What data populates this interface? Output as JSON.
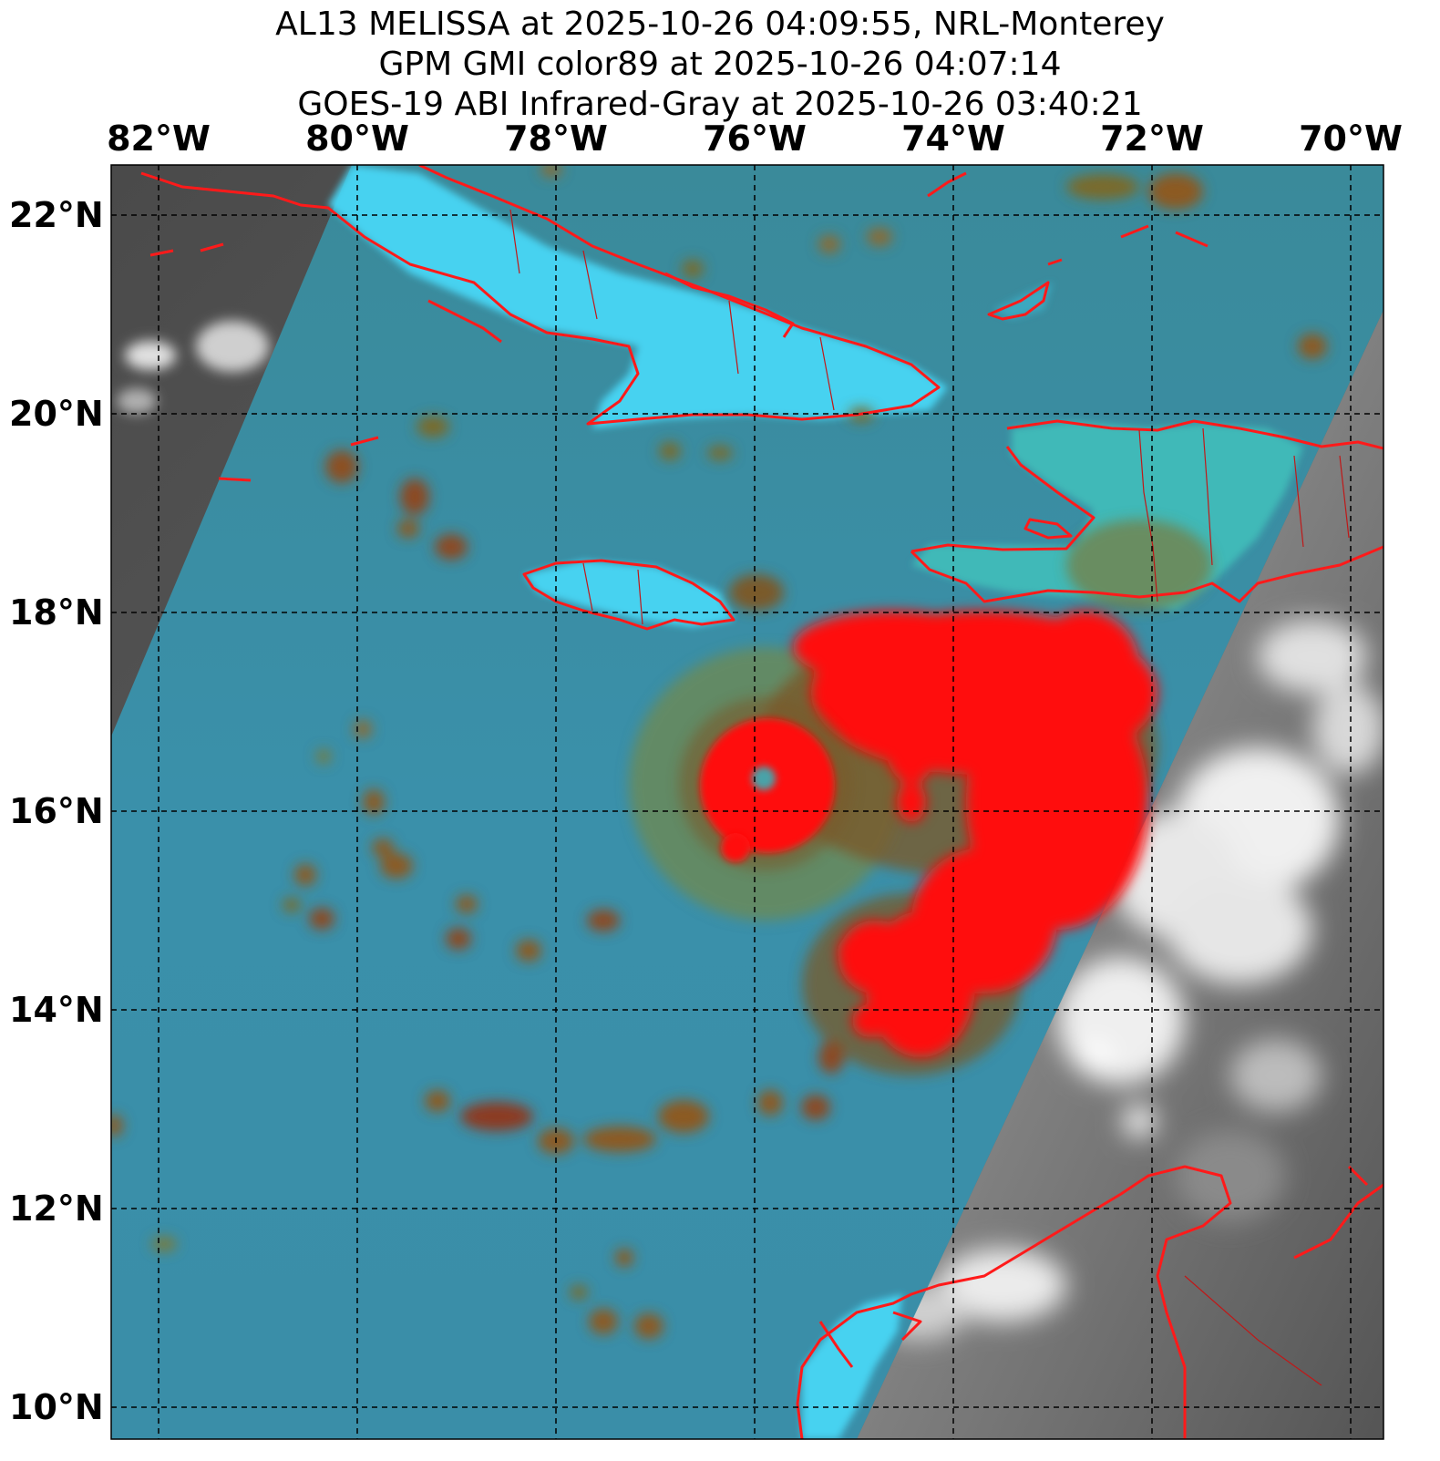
{
  "titles": {
    "line1": "AL13 MELISSA at 2025-10-26 04:09:55, NRL-Monterey",
    "line2": "GPM GMI color89 at 2025-10-26 04:07:14",
    "line3": "GOES-19 ABI Infrared-Gray at 2025-10-26 03:40:21"
  },
  "longitude_labels": [
    "82°W",
    "80°W",
    "78°W",
    "76°W",
    "74°W",
    "72°W",
    "70°W"
  ],
  "latitude_labels": [
    "22°N",
    "20°N",
    "18°N",
    "16°N",
    "14°N",
    "12°N",
    "10°N"
  ],
  "colors": {
    "coastline": "#ff1a1a",
    "microwave_sea": "#3a8ea8",
    "microwave_land": "#40d0f0",
    "convection_strong": "#ff0000",
    "convection_moderate": "#8c5a20",
    "ir_background": "#5a5a5a",
    "ir_cloud": "#e8e8e8",
    "gridline": "#000000"
  },
  "storm": {
    "name": "MELISSA",
    "id": "AL13",
    "eye_lat": 16.3,
    "eye_lon": -76.1
  }
}
